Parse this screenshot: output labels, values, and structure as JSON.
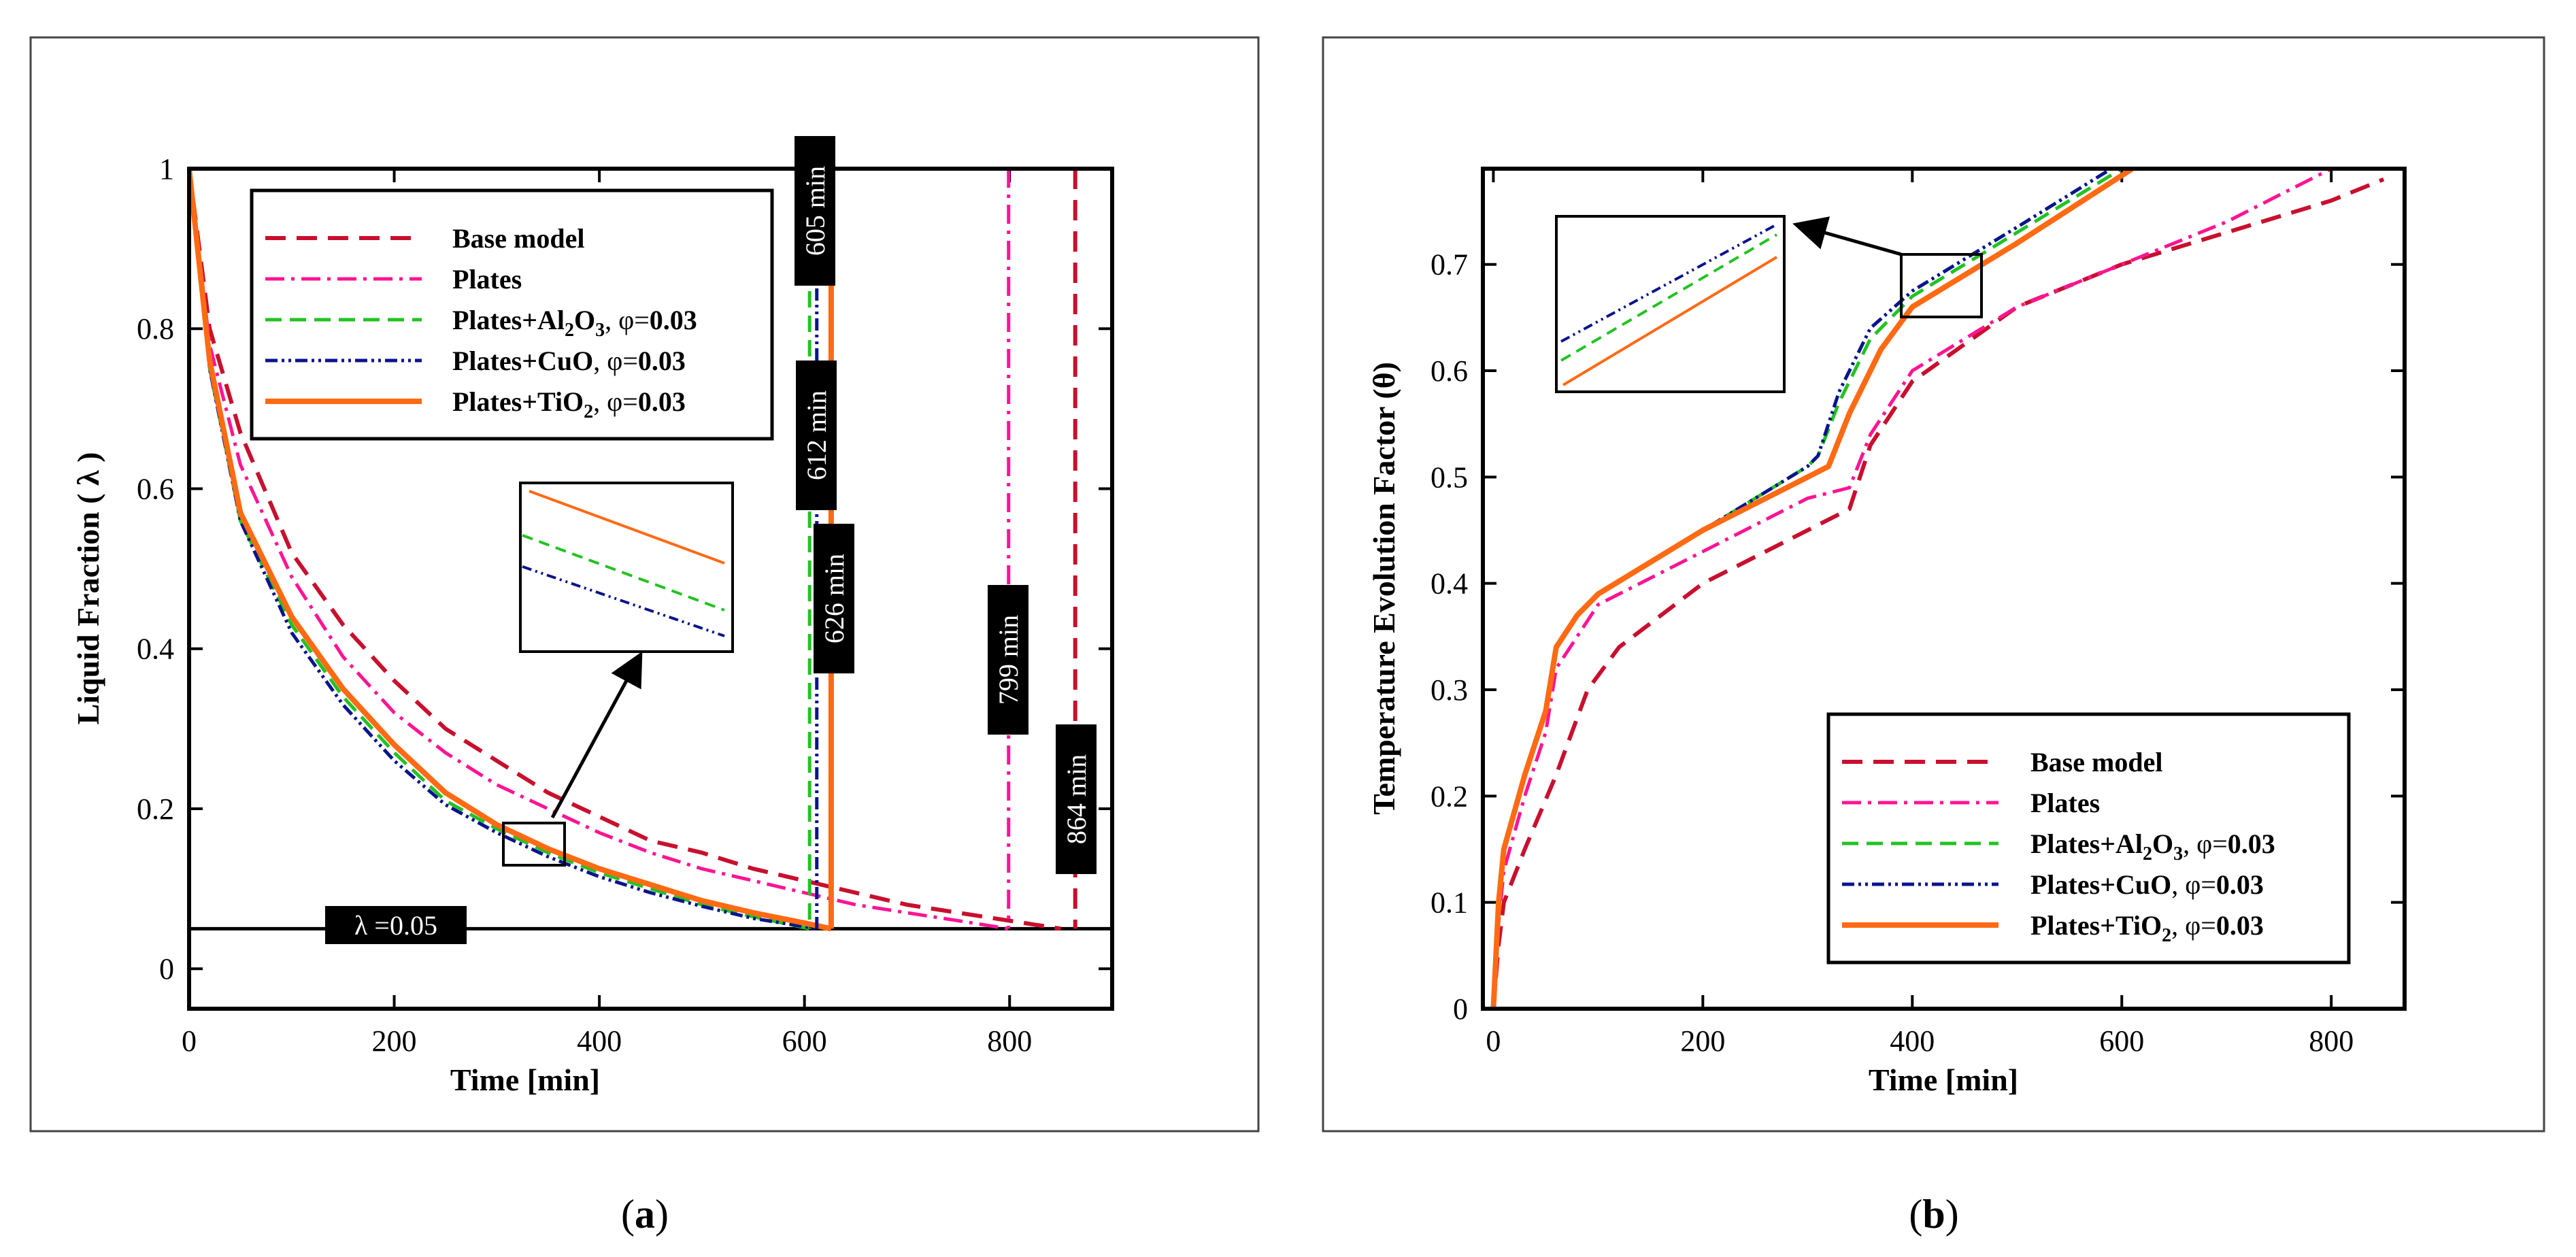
{
  "colors": {
    "base": "#c8102e",
    "plates": "#ff1493",
    "al2o3": "#22c322",
    "cuo": "#0a148c",
    "tio2": "#ff6a13"
  },
  "legend": {
    "base": "Base model",
    "plates": "Plates",
    "al2o3_main": "Plates+Al",
    "al2o3_sub1": "2",
    "al2o3_mid": "O",
    "al2o3_sub2": "3",
    "cuo_main": "Plates+CuO",
    "tio2_main": "Plates+TiO",
    "tio2_sub": "2",
    "phi_prefix": ", φ=",
    "phi_value": "0.03"
  },
  "captions": {
    "a_open": "(",
    "a_letter": "a",
    "a_close": ")",
    "b_open": "(",
    "b_letter": "b",
    "b_close": ")"
  },
  "chart_data": [
    {
      "id": "a",
      "type": "line",
      "xlabel": "Time [min]",
      "ylabel": "Liquid Fraction ( λ )",
      "xlim": [
        0,
        900
      ],
      "ylim": [
        -0.05,
        1.0
      ],
      "xticks": [
        "0",
        "200",
        "400",
        "600",
        "800"
      ],
      "yticks": [
        "0",
        "0.2",
        "0.4",
        "0.6",
        "0.8",
        "1"
      ],
      "threshold": {
        "value": 0.05,
        "label": "λ =0.05"
      },
      "completion_times": [
        {
          "series": "Plates+Al2O3, φ=0.03",
          "time": 605,
          "label": "605 min"
        },
        {
          "series": "Plates+CuO, φ=0.03",
          "time": 612,
          "label": "612 min"
        },
        {
          "series": "Plates+TiO2, φ=0.03",
          "time": 626,
          "label": "626 min"
        },
        {
          "series": "Plates",
          "time": 799,
          "label": "799 min"
        },
        {
          "series": "Base model",
          "time": 864,
          "label": "864 min"
        }
      ],
      "series": [
        {
          "name": "Base model",
          "x": [
            0,
            20,
            50,
            100,
            150,
            200,
            250,
            300,
            350,
            400,
            450,
            500,
            550,
            600,
            650,
            700,
            750,
            800,
            850
          ],
          "y": [
            1.0,
            0.8,
            0.67,
            0.52,
            0.43,
            0.36,
            0.3,
            0.26,
            0.22,
            0.19,
            0.16,
            0.145,
            0.125,
            0.11,
            0.095,
            0.08,
            0.07,
            0.06,
            0.05
          ]
        },
        {
          "name": "Plates",
          "x": [
            0,
            20,
            50,
            100,
            150,
            200,
            250,
            300,
            350,
            400,
            450,
            500,
            550,
            600,
            650,
            700,
            750,
            799
          ],
          "y": [
            1.0,
            0.78,
            0.63,
            0.49,
            0.39,
            0.32,
            0.27,
            0.23,
            0.2,
            0.17,
            0.145,
            0.125,
            0.11,
            0.095,
            0.08,
            0.07,
            0.06,
            0.05
          ]
        },
        {
          "name": "Plates+Al2O3, φ=0.03",
          "x": [
            0,
            20,
            50,
            100,
            150,
            200,
            250,
            300,
            350,
            400,
            450,
            500,
            550,
            605
          ],
          "y": [
            1.0,
            0.75,
            0.56,
            0.43,
            0.34,
            0.27,
            0.21,
            0.175,
            0.145,
            0.12,
            0.1,
            0.08,
            0.065,
            0.05
          ]
        },
        {
          "name": "Plates+CuO, φ=0.03",
          "x": [
            0,
            20,
            50,
            100,
            150,
            200,
            250,
            300,
            350,
            400,
            450,
            500,
            550,
            612
          ],
          "y": [
            1.0,
            0.75,
            0.56,
            0.42,
            0.33,
            0.26,
            0.205,
            0.17,
            0.14,
            0.115,
            0.095,
            0.078,
            0.063,
            0.05
          ]
        },
        {
          "name": "Plates+TiO2, φ=0.03",
          "x": [
            0,
            20,
            50,
            100,
            150,
            200,
            250,
            300,
            350,
            400,
            450,
            500,
            550,
            600,
            626
          ],
          "y": [
            1.0,
            0.76,
            0.57,
            0.44,
            0.35,
            0.28,
            0.22,
            0.18,
            0.15,
            0.125,
            0.105,
            0.085,
            0.07,
            0.057,
            0.05
          ]
        }
      ]
    },
    {
      "id": "b",
      "type": "line",
      "xlabel": "Time [min]",
      "ylabel": "Temperature Evolution Factor (θ)",
      "xlim": [
        -10,
        870
      ],
      "ylim": [
        0,
        0.79
      ],
      "xticks": [
        "0",
        "200",
        "400",
        "600",
        "800"
      ],
      "yticks": [
        "0",
        "0.1",
        "0.2",
        "0.3",
        "0.4",
        "0.5",
        "0.6",
        "0.7"
      ],
      "series": [
        {
          "name": "Base model",
          "x": [
            0,
            5,
            10,
            30,
            60,
            90,
            120,
            200,
            280,
            340,
            360,
            400,
            500,
            600,
            700,
            800,
            850
          ],
          "y": [
            0.0,
            0.06,
            0.1,
            0.15,
            0.22,
            0.3,
            0.34,
            0.4,
            0.44,
            0.47,
            0.53,
            0.59,
            0.66,
            0.7,
            0.73,
            0.76,
            0.78
          ]
        },
        {
          "name": "Plates",
          "x": [
            0,
            5,
            10,
            30,
            50,
            60,
            80,
            100,
            200,
            300,
            340,
            360,
            400,
            500,
            600,
            700,
            800
          ],
          "y": [
            0.0,
            0.08,
            0.13,
            0.2,
            0.26,
            0.32,
            0.35,
            0.38,
            0.43,
            0.48,
            0.49,
            0.54,
            0.6,
            0.66,
            0.7,
            0.74,
            0.79
          ]
        },
        {
          "name": "Plates+Al2O3, φ=0.03",
          "x": [
            0,
            5,
            10,
            30,
            50,
            60,
            80,
            100,
            200,
            300,
            310,
            330,
            360,
            400,
            500,
            600
          ],
          "y": [
            0.0,
            0.1,
            0.15,
            0.22,
            0.28,
            0.34,
            0.37,
            0.39,
            0.45,
            0.51,
            0.52,
            0.57,
            0.63,
            0.67,
            0.73,
            0.79
          ]
        },
        {
          "name": "Plates+CuO, φ=0.03",
          "x": [
            0,
            5,
            10,
            30,
            50,
            60,
            80,
            100,
            200,
            300,
            310,
            330,
            360,
            400,
            500,
            590
          ],
          "y": [
            0.0,
            0.1,
            0.15,
            0.22,
            0.28,
            0.34,
            0.37,
            0.39,
            0.45,
            0.51,
            0.52,
            0.58,
            0.64,
            0.675,
            0.735,
            0.79
          ]
        },
        {
          "name": "Plates+TiO2, φ=0.03",
          "x": [
            0,
            5,
            10,
            30,
            50,
            60,
            80,
            100,
            200,
            300,
            320,
            340,
            370,
            400,
            500,
            610
          ],
          "y": [
            0.0,
            0.1,
            0.15,
            0.22,
            0.28,
            0.34,
            0.37,
            0.39,
            0.45,
            0.5,
            0.51,
            0.56,
            0.62,
            0.66,
            0.72,
            0.79
          ]
        }
      ]
    }
  ]
}
